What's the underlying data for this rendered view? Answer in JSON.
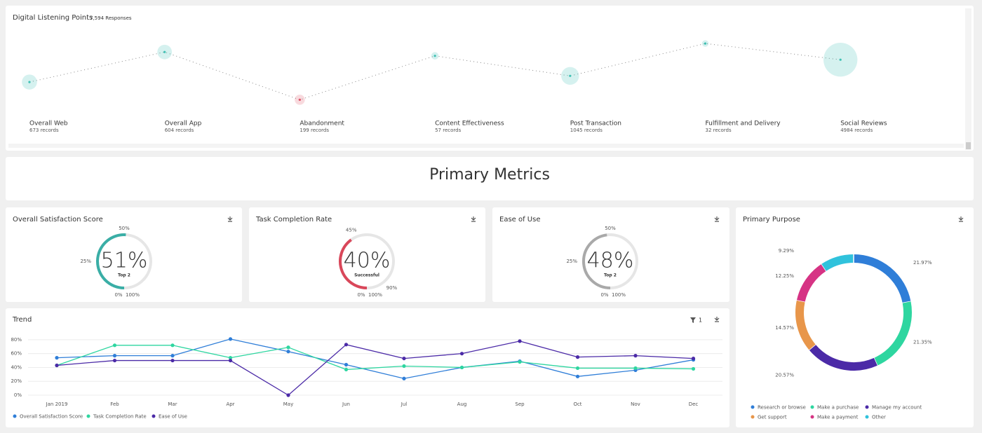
{
  "listening": {
    "title": "Digital Listening Points",
    "responses": "7,594 Responses",
    "points": [
      {
        "name": "Overall Web",
        "records": {
          "value": 673,
          "label": "673 records"
        },
        "score": 39,
        "color": "#3fc1b4"
      },
      {
        "name": "Overall App",
        "records": {
          "value": 604,
          "label": "604 records"
        },
        "score": 78,
        "color": "#3fc1b4"
      },
      {
        "name": "Abandonment",
        "records": {
          "value": 199,
          "label": "199 records"
        },
        "score": 16,
        "color": "#e0566b"
      },
      {
        "name": "Content Effectiveness",
        "records": {
          "value": 57,
          "label": "57 records"
        },
        "score": 73,
        "color": "#3fc1b4"
      },
      {
        "name": "Post Transaction",
        "records": {
          "value": 1045,
          "label": "1045 records"
        },
        "score": 47,
        "color": "#3fc1b4"
      },
      {
        "name": "Fulfillment and Delivery",
        "records": {
          "value": 32,
          "label": "32 records"
        },
        "score": 89,
        "color": "#3fc1b4"
      },
      {
        "name": "Social Reviews",
        "records": {
          "value": 4984,
          "label": "4984 records"
        },
        "score": 68,
        "color": "#3fc1b4"
      }
    ]
  },
  "metrics_title": "Primary Metrics",
  "gauges": [
    {
      "title": "Overall Satisfaction Score",
      "value": 51,
      "value_label": "51%",
      "sublabel": "Top 2",
      "color": "#3aaea6",
      "ticks": [
        {
          "value": 0,
          "label": "0%"
        },
        {
          "value": 25,
          "label": "25%"
        },
        {
          "value": 50,
          "label": "50%"
        },
        {
          "value": 100,
          "label": "100%"
        }
      ]
    },
    {
      "title": "Task Completion Rate",
      "value": 40,
      "value_label": "40%",
      "sublabel": "Successful",
      "color": "#d9475a",
      "ticks": [
        {
          "value": 0,
          "label": "0%"
        },
        {
          "value": 45,
          "label": "45%"
        },
        {
          "value": 90,
          "label": "90%"
        },
        {
          "value": 100,
          "label": "100%"
        }
      ]
    },
    {
      "title": "Ease of Use",
      "value": 48,
      "value_label": "48%",
      "sublabel": "Top 2",
      "color": "#a9a9a9",
      "ticks": [
        {
          "value": 0,
          "label": "0%"
        },
        {
          "value": 25,
          "label": "25%"
        },
        {
          "value": 50,
          "label": "50%"
        },
        {
          "value": 100,
          "label": "100%"
        }
      ]
    }
  ],
  "trend": {
    "type": "line",
    "title": "Trend",
    "filter_count": 1,
    "categories": [
      "Jan 2019",
      "Feb",
      "Mar",
      "Apr",
      "May",
      "Jun",
      "Jul",
      "Aug",
      "Sep",
      "Oct",
      "Nov",
      "Dec"
    ],
    "ylim": [
      0,
      90
    ],
    "yticks": [
      {
        "value": 0,
        "label": "0%"
      },
      {
        "value": 20,
        "label": "20%"
      },
      {
        "value": 40,
        "label": "40%"
      },
      {
        "value": 60,
        "label": "60%"
      },
      {
        "value": 80,
        "label": "80%"
      }
    ],
    "grid": true,
    "series": [
      {
        "name": "Overall Satisfaction Score",
        "color": "#2f7ed8",
        "values": [
          54,
          57,
          57,
          81,
          63,
          44,
          24,
          40,
          49,
          27,
          36,
          51
        ]
      },
      {
        "name": "Task Completion Rate",
        "color": "#2ed6a0",
        "values": [
          43,
          72,
          72,
          54,
          69,
          37,
          42,
          40,
          48,
          39,
          39,
          38
        ]
      },
      {
        "name": "Ease of Use",
        "color": "#4b2aa7",
        "values": [
          43,
          50,
          50,
          50,
          0,
          73,
          53,
          60,
          78,
          55,
          57,
          53
        ]
      }
    ]
  },
  "purpose": {
    "type": "donut",
    "title": "Primary Purpose",
    "categories": [
      "Research or browse",
      "Make a purchase",
      "Manage my account",
      "Get support",
      "Make a payment",
      "Other"
    ],
    "values": [
      21.97,
      21.35,
      20.57,
      14.57,
      12.25,
      9.29
    ],
    "value_labels": [
      "21.97%",
      "21.35%",
      "20.57%",
      "14.57%",
      "12.25%",
      "9.29%"
    ],
    "colors": [
      "#2f7ed8",
      "#2ed6a0",
      "#4b2aa7",
      "#e8964a",
      "#d63384",
      "#30c2dc"
    ]
  }
}
